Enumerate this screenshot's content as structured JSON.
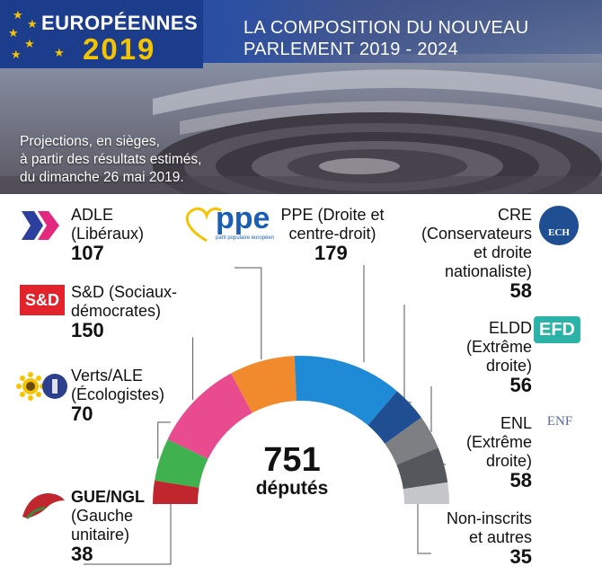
{
  "header": {
    "brand_title": "EUROPÉENNES",
    "brand_year": "2019",
    "headline_line1": "LA COMPOSITION DU NOUVEAU",
    "headline_line2": "PARLEMENT 2019 - 2024",
    "subtitle_line1": "Projections, en sièges,",
    "subtitle_line2": "à partir des résultats estimés,",
    "subtitle_line3": "du dimanche 26 mai 2019."
  },
  "center": {
    "total": "751",
    "word": "députés"
  },
  "logos": {
    "ppe_text": "ppe",
    "ppe_small": "parti populaire européen",
    "sd_text": "S&D",
    "ech_text": "ECH",
    "efd_text": "EFD",
    "enf_text": "ENF"
  },
  "chart_data": {
    "type": "pie",
    "subtype": "half-donut (hemicycle)",
    "total": 751,
    "order": "left to right",
    "groups": [
      {
        "abbr": "GUE/NGL",
        "line1": "GUE/NGL",
        "line2": "(Gauche",
        "line3": "unitaire)",
        "value": 38,
        "color": "#c0262d"
      },
      {
        "abbr": "Verts/ALE",
        "line1": "Verts/ALE",
        "line2": "(Écologistes)",
        "value": 70,
        "color": "#3fb24f"
      },
      {
        "abbr": "S&D",
        "line1": "S&D (Sociaux-",
        "line2": "démocrates)",
        "value": 150,
        "color": "#e94b8f"
      },
      {
        "abbr": "ADLE",
        "line1": "ADLE",
        "line2": "(Libéraux)",
        "value": 107,
        "color": "#f08a2c"
      },
      {
        "abbr": "PPE",
        "line1": "PPE (Droite et",
        "line2": "centre-droit)",
        "value": 179,
        "color": "#1f8ad6"
      },
      {
        "abbr": "CRE",
        "line1": "CRE",
        "line2": "(Conservateurs",
        "line3": "et droite",
        "line4": "nationaliste)",
        "value": 58,
        "color": "#1f4f92"
      },
      {
        "abbr": "ELDD",
        "line1": "ELDD",
        "line2": "(Extrême",
        "line3": "droite)",
        "value": 56,
        "color": "#7d7f83"
      },
      {
        "abbr": "ENL",
        "line1": "ENL",
        "line2": "(Extrême",
        "line3": "droite)",
        "value": 58,
        "color": "#54575c"
      },
      {
        "abbr": "NI",
        "line1": "Non-inscrits",
        "line2": "et autres",
        "value": 35,
        "color": "#c4c6c9"
      }
    ]
  }
}
